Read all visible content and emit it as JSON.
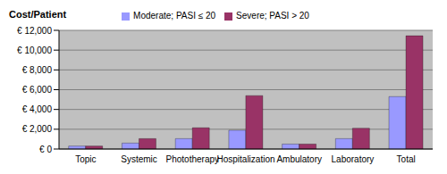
{
  "chart_data": {
    "type": "bar",
    "y_label": "Cost/Patient",
    "categories": [
      "Topic",
      "Systemic",
      "Phototherapy",
      "Hospitalization",
      "Ambulatory",
      "Laboratory",
      "Total"
    ],
    "series": [
      {
        "name": "Moderate; PASI ≤ 20",
        "color": "#9999ff",
        "values": [
          300,
          600,
          1050,
          1900,
          500,
          1050,
          5300
        ]
      },
      {
        "name": "Severe; PASI > 20",
        "color": "#993366",
        "values": [
          300,
          1050,
          2150,
          5400,
          500,
          2100,
          11450
        ]
      }
    ],
    "ylim": [
      0,
      12000
    ],
    "yticks": [
      {
        "value": 0,
        "label": "€ 0"
      },
      {
        "value": 2000,
        "label": "€ 2,000"
      },
      {
        "value": 4000,
        "label": "€ 4,000"
      },
      {
        "value": 6000,
        "label": "€ 6,000"
      },
      {
        "value": 8000,
        "label": "€ 8,000"
      },
      {
        "value": 10000,
        "label": "€ 10,000"
      },
      {
        "value": 12000,
        "label": "€ 12,000"
      }
    ],
    "grid": true,
    "legend": "top"
  }
}
